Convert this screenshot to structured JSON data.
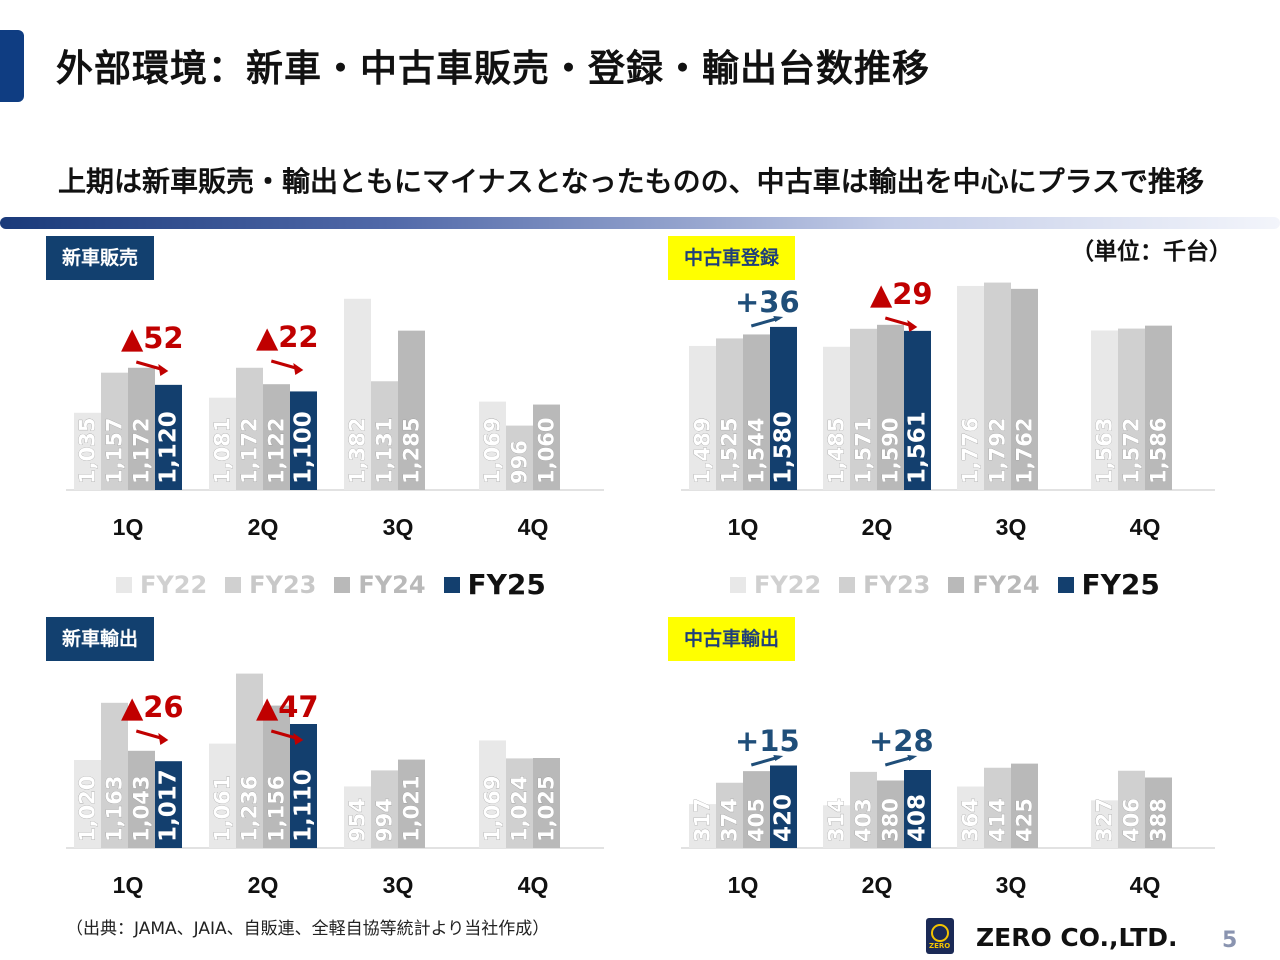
{
  "header": {
    "title": "外部環境：新車・中古車販売・登録・輸出台数推移",
    "subtitle": "上期は新車販売・輸出ともにマイナスとなったものの、中古車は輸出を中心にプラスで推移",
    "unit": "（単位：千台）"
  },
  "colors": {
    "FY22": "#e8e8e8",
    "FY23": "#d0d0d0",
    "FY24": "#b9b9b9",
    "FY25": "#133f6e",
    "decrease": "#c00000",
    "increase": "#1f4e79",
    "accent": "#0f3d82"
  },
  "legend": {
    "items": [
      {
        "label": "FY22",
        "color": "#e8e8e8"
      },
      {
        "label": "FY23",
        "color": "#d0d0d0"
      },
      {
        "label": "FY24",
        "color": "#b9b9b9"
      },
      {
        "label": "FY25",
        "color": "#133f6e"
      }
    ]
  },
  "chart_data": [
    {
      "type": "bar",
      "title": "新車販売",
      "title_style": "navy",
      "categories": [
        "1Q",
        "2Q",
        "3Q",
        "4Q"
      ],
      "series": [
        {
          "name": "FY22",
          "values": [
            1035,
            1081,
            1382,
            1069
          ]
        },
        {
          "name": "FY23",
          "values": [
            1157,
            1172,
            1131,
            996
          ]
        },
        {
          "name": "FY24",
          "values": [
            1172,
            1122,
            1285,
            1060
          ]
        },
        {
          "name": "FY25",
          "values": [
            1120,
            1100,
            null,
            null
          ]
        }
      ],
      "value_labels": [
        [
          "1,035",
          "1,081",
          "1,382",
          "1,069"
        ],
        [
          "1,157",
          "1,172",
          "1,131",
          "996"
        ],
        [
          "1,172",
          "1,122",
          "1,285",
          "1,060"
        ],
        [
          "1,120",
          "1,100",
          "",
          ""
        ]
      ],
      "annotations": [
        {
          "category": "1Q",
          "text": "▲52",
          "direction": "down"
        },
        {
          "category": "2Q",
          "text": "▲22",
          "direction": "down"
        }
      ]
    },
    {
      "type": "bar",
      "title": "中古車登録",
      "title_style": "yellow",
      "categories": [
        "1Q",
        "2Q",
        "3Q",
        "4Q"
      ],
      "series": [
        {
          "name": "FY22",
          "values": [
            1489,
            1485,
            1776,
            1563
          ]
        },
        {
          "name": "FY23",
          "values": [
            1525,
            1571,
            1792,
            1572
          ]
        },
        {
          "name": "FY24",
          "values": [
            1544,
            1590,
            1762,
            1586
          ]
        },
        {
          "name": "FY25",
          "values": [
            1580,
            1561,
            null,
            null
          ]
        }
      ],
      "value_labels": [
        [
          "1,489",
          "1,485",
          "1,776",
          "1,563"
        ],
        [
          "1,525",
          "1,571",
          "1,792",
          "1,572"
        ],
        [
          "1,544",
          "1,590",
          "1,762",
          "1,586"
        ],
        [
          "1,580",
          "1,561",
          "",
          ""
        ]
      ],
      "annotations": [
        {
          "category": "1Q",
          "text": "+36",
          "direction": "up"
        },
        {
          "category": "2Q",
          "text": "▲29",
          "direction": "down"
        }
      ]
    },
    {
      "type": "bar",
      "title": "新車輸出",
      "title_style": "navy",
      "categories": [
        "1Q",
        "2Q",
        "3Q",
        "4Q"
      ],
      "series": [
        {
          "name": "FY22",
          "values": [
            1020,
            1061,
            954,
            1069
          ]
        },
        {
          "name": "FY23",
          "values": [
            1163,
            1236,
            994,
            1024
          ]
        },
        {
          "name": "FY24",
          "values": [
            1043,
            1156,
            1021,
            1025
          ]
        },
        {
          "name": "FY25",
          "values": [
            1017,
            1110,
            null,
            null
          ]
        }
      ],
      "value_labels": [
        [
          "1,020",
          "1,061",
          "954",
          "1,069"
        ],
        [
          "1,163",
          "1,236",
          "994",
          "1,024"
        ],
        [
          "1,043",
          "1,156",
          "1,021",
          "1,025"
        ],
        [
          "1,017",
          "1,110",
          "",
          ""
        ]
      ],
      "annotations": [
        {
          "category": "1Q",
          "text": "▲26",
          "direction": "down"
        },
        {
          "category": "2Q",
          "text": "▲47",
          "direction": "down"
        }
      ]
    },
    {
      "type": "bar",
      "title": "中古車輸出",
      "title_style": "yellow",
      "categories": [
        "1Q",
        "2Q",
        "3Q",
        "4Q"
      ],
      "series": [
        {
          "name": "FY22",
          "values": [
            317,
            314,
            364,
            327
          ]
        },
        {
          "name": "FY23",
          "values": [
            374,
            403,
            414,
            406
          ]
        },
        {
          "name": "FY24",
          "values": [
            405,
            380,
            425,
            388
          ]
        },
        {
          "name": "FY25",
          "values": [
            420,
            408,
            null,
            null
          ]
        }
      ],
      "value_labels": [
        [
          "317",
          "314",
          "364",
          "327"
        ],
        [
          "374",
          "403",
          "414",
          "406"
        ],
        [
          "405",
          "380",
          "425",
          "388"
        ],
        [
          "420",
          "408",
          "",
          ""
        ]
      ],
      "annotations": [
        {
          "category": "1Q",
          "text": "+15",
          "direction": "up"
        },
        {
          "category": "2Q",
          "text": "+28",
          "direction": "up"
        }
      ]
    }
  ],
  "footer": {
    "source": "（出典：JAMA、JAIA、自販連、全軽自協等統計より当社作成）",
    "company": "ZERO CO.,LTD.",
    "logo_text": "ZERO",
    "page": "5"
  }
}
